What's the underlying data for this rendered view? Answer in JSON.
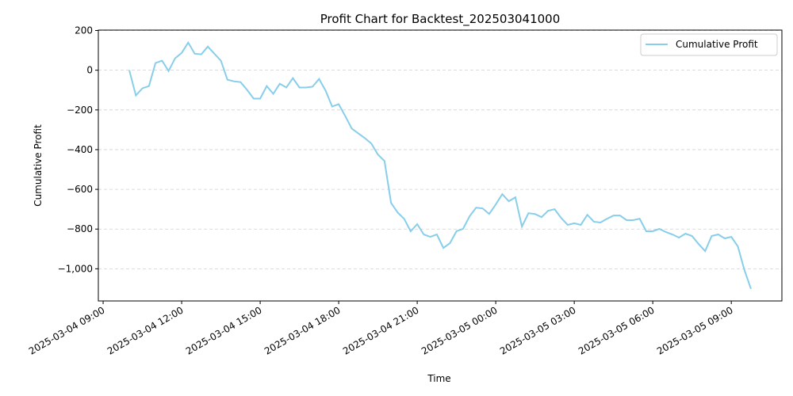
{
  "chart_data": {
    "type": "line",
    "title": "Profit Chart for Backtest_202503041000",
    "xlabel": "Time",
    "ylabel": "Cumulative Profit",
    "x": [
      "2025-03-04 10:00",
      "2025-03-04 10:15",
      "2025-03-04 10:30",
      "2025-03-04 10:45",
      "2025-03-04 11:00",
      "2025-03-04 11:15",
      "2025-03-04 11:30",
      "2025-03-04 11:45",
      "2025-03-04 12:00",
      "2025-03-04 12:15",
      "2025-03-04 12:30",
      "2025-03-04 12:45",
      "2025-03-04 13:00",
      "2025-03-04 13:15",
      "2025-03-04 13:30",
      "2025-03-04 13:45",
      "2025-03-04 14:00",
      "2025-03-04 14:15",
      "2025-03-04 14:30",
      "2025-03-04 14:45",
      "2025-03-04 15:00",
      "2025-03-04 15:15",
      "2025-03-04 15:30",
      "2025-03-04 15:45",
      "2025-03-04 16:00",
      "2025-03-04 16:15",
      "2025-03-04 16:30",
      "2025-03-04 16:45",
      "2025-03-04 17:00",
      "2025-03-04 17:15",
      "2025-03-04 17:30",
      "2025-03-04 17:45",
      "2025-03-04 18:00",
      "2025-03-04 18:15",
      "2025-03-04 18:30",
      "2025-03-04 18:45",
      "2025-03-04 19:00",
      "2025-03-04 19:15",
      "2025-03-04 19:30",
      "2025-03-04 19:45",
      "2025-03-04 20:00",
      "2025-03-04 20:15",
      "2025-03-04 20:30",
      "2025-03-04 20:45",
      "2025-03-04 21:00",
      "2025-03-04 21:15",
      "2025-03-04 21:30",
      "2025-03-04 21:45",
      "2025-03-04 22:00",
      "2025-03-04 22:15",
      "2025-03-04 22:30",
      "2025-03-04 22:45",
      "2025-03-04 23:00",
      "2025-03-04 23:15",
      "2025-03-04 23:30",
      "2025-03-04 23:45",
      "2025-03-05 00:00",
      "2025-03-05 00:15",
      "2025-03-05 00:30",
      "2025-03-05 00:45",
      "2025-03-05 01:00",
      "2025-03-05 01:15",
      "2025-03-05 01:30",
      "2025-03-05 01:45",
      "2025-03-05 02:00",
      "2025-03-05 02:15",
      "2025-03-05 02:30",
      "2025-03-05 02:45",
      "2025-03-05 03:00",
      "2025-03-05 03:15",
      "2025-03-05 03:30",
      "2025-03-05 03:45",
      "2025-03-05 04:00",
      "2025-03-05 04:15",
      "2025-03-05 04:30",
      "2025-03-05 04:45",
      "2025-03-05 05:00",
      "2025-03-05 05:15",
      "2025-03-05 05:30",
      "2025-03-05 05:45",
      "2025-03-05 06:00",
      "2025-03-05 06:15",
      "2025-03-05 06:30",
      "2025-03-05 06:45",
      "2025-03-05 07:00",
      "2025-03-05 07:15",
      "2025-03-05 07:30",
      "2025-03-05 07:45",
      "2025-03-05 08:00",
      "2025-03-05 08:15",
      "2025-03-05 08:30",
      "2025-03-05 08:45",
      "2025-03-05 09:00",
      "2025-03-05 09:15",
      "2025-03-05 09:30",
      "2025-03-05 09:45"
    ],
    "series": [
      {
        "name": "Cumulative Profit",
        "color": "#87ceeb",
        "values": [
          0,
          -127,
          -91,
          -80,
          36,
          48,
          -4,
          60,
          87,
          139,
          83,
          80,
          119,
          83,
          48,
          -48,
          -56,
          -60,
          -99,
          -143,
          -143,
          -80,
          -119,
          -68,
          -87,
          -40,
          -87,
          -87,
          -83,
          -44,
          -103,
          -183,
          -171,
          -231,
          -294,
          -318,
          -342,
          -370,
          -425,
          -457,
          -668,
          -716,
          -748,
          -811,
          -775,
          -827,
          -839,
          -827,
          -895,
          -871,
          -811,
          -799,
          -736,
          -692,
          -696,
          -724,
          -676,
          -624,
          -660,
          -640,
          -787,
          -720,
          -724,
          -740,
          -708,
          -700,
          -744,
          -779,
          -771,
          -779,
          -728,
          -763,
          -767,
          -748,
          -732,
          -732,
          -755,
          -755,
          -748,
          -811,
          -811,
          -799,
          -815,
          -827,
          -843,
          -823,
          -835,
          -875,
          -911,
          -835,
          -827,
          -847,
          -839,
          -887,
          -1006,
          -1101
        ]
      }
    ],
    "xlim": [
      "2025-03-04 08:49",
      "2025-03-05 10:56"
    ],
    "xticks": [
      "2025-03-04 09:00",
      "2025-03-04 12:00",
      "2025-03-04 15:00",
      "2025-03-04 18:00",
      "2025-03-04 21:00",
      "2025-03-05 00:00",
      "2025-03-05 03:00",
      "2025-03-05 06:00",
      "2025-03-05 09:00"
    ],
    "ylim": [
      -1162,
      202
    ],
    "yticks": [
      {
        "value": -1000,
        "label": "−1,000"
      },
      {
        "value": -800,
        "label": "−800"
      },
      {
        "value": -600,
        "label": "−600"
      },
      {
        "value": -400,
        "label": "−400"
      },
      {
        "value": -200,
        "label": "−200"
      },
      0,
      200
    ],
    "grid": true,
    "legend": "upper right"
  }
}
